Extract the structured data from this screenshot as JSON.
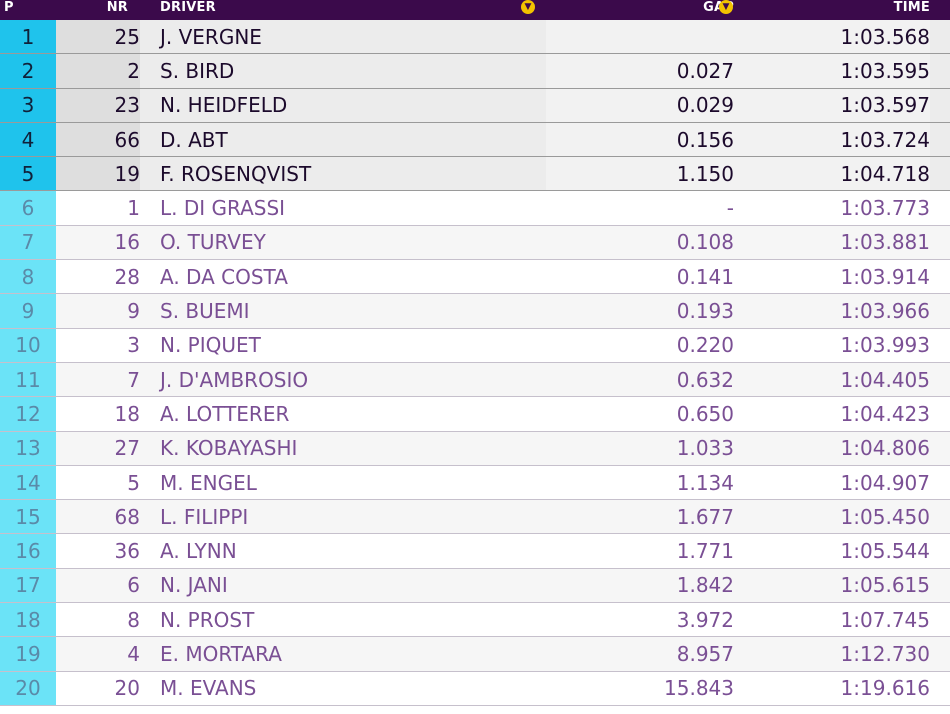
{
  "header": {
    "p": "P",
    "nr": "NR",
    "driver": "DRIVER",
    "gap": "GAP",
    "time": "TIME",
    "sort_icon": "chevron-down-icon"
  },
  "colors": {
    "header_bg": "#3b0a4b",
    "top_pos_bg": "#1fc3ec",
    "other_pos_bg": "#6be3f7",
    "sort_icon": "#f2c200",
    "other_text": "#7a4f94"
  },
  "rows": [
    {
      "p": "1",
      "nr": "25",
      "driver": "J. VERGNE",
      "gap": "",
      "time": "1:03.568"
    },
    {
      "p": "2",
      "nr": "2",
      "driver": "S. BIRD",
      "gap": "0.027",
      "time": "1:03.595"
    },
    {
      "p": "3",
      "nr": "23",
      "driver": "N. HEIDFELD",
      "gap": "0.029",
      "time": "1:03.597"
    },
    {
      "p": "4",
      "nr": "66",
      "driver": "D. ABT",
      "gap": "0.156",
      "time": "1:03.724"
    },
    {
      "p": "5",
      "nr": "19",
      "driver": "F. ROSENQVIST",
      "gap": "1.150",
      "time": "1:04.718"
    },
    {
      "p": "6",
      "nr": "1",
      "driver": "L. DI GRASSI",
      "gap": "-",
      "time": "1:03.773"
    },
    {
      "p": "7",
      "nr": "16",
      "driver": "O. TURVEY",
      "gap": "0.108",
      "time": "1:03.881"
    },
    {
      "p": "8",
      "nr": "28",
      "driver": "A. DA COSTA",
      "gap": "0.141",
      "time": "1:03.914"
    },
    {
      "p": "9",
      "nr": "9",
      "driver": "S. BUEMI",
      "gap": "0.193",
      "time": "1:03.966"
    },
    {
      "p": "10",
      "nr": "3",
      "driver": "N. PIQUET",
      "gap": "0.220",
      "time": "1:03.993"
    },
    {
      "p": "11",
      "nr": "7",
      "driver": "J. D'AMBROSIO",
      "gap": "0.632",
      "time": "1:04.405"
    },
    {
      "p": "12",
      "nr": "18",
      "driver": "A. LOTTERER",
      "gap": "0.650",
      "time": "1:04.423"
    },
    {
      "p": "13",
      "nr": "27",
      "driver": "K. KOBAYASHI",
      "gap": "1.033",
      "time": "1:04.806"
    },
    {
      "p": "14",
      "nr": "5",
      "driver": "M. ENGEL",
      "gap": "1.134",
      "time": "1:04.907"
    },
    {
      "p": "15",
      "nr": "68",
      "driver": "L. FILIPPI",
      "gap": "1.677",
      "time": "1:05.450"
    },
    {
      "p": "16",
      "nr": "36",
      "driver": "A. LYNN",
      "gap": "1.771",
      "time": "1:05.544"
    },
    {
      "p": "17",
      "nr": "6",
      "driver": "N. JANI",
      "gap": "1.842",
      "time": "1:05.615"
    },
    {
      "p": "18",
      "nr": "8",
      "driver": "N. PROST",
      "gap": "3.972",
      "time": "1:07.745"
    },
    {
      "p": "19",
      "nr": "4",
      "driver": "E. MORTARA",
      "gap": "8.957",
      "time": "1:12.730"
    },
    {
      "p": "20",
      "nr": "20",
      "driver": "M. EVANS",
      "gap": "15.843",
      "time": "1:19.616"
    }
  ]
}
